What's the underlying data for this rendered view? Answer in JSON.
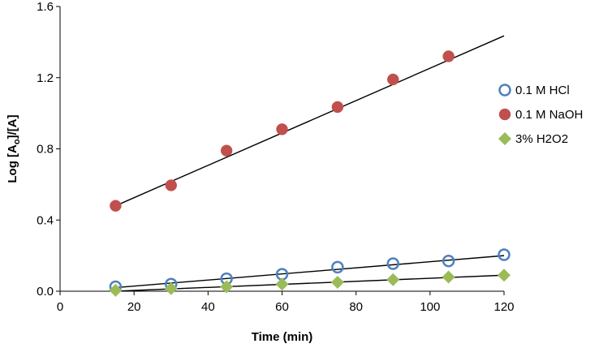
{
  "chart_data": {
    "type": "scatter",
    "xlabel": "Time (min)",
    "ylabel": {
      "prefix": "Log [A",
      "subscript": "o",
      "suffix": "]/[A]"
    },
    "xlim": [
      0,
      120
    ],
    "ylim": [
      0,
      1.6
    ],
    "xticks": [
      "0",
      "20",
      "40",
      "60",
      "80",
      "100",
      "120"
    ],
    "yticks": [
      "0.0",
      "0.4",
      "0.8",
      "1.2",
      "1.6"
    ],
    "grid": false,
    "legend_position": "right",
    "x": [
      15,
      30,
      45,
      60,
      75,
      90,
      105,
      120
    ],
    "series": [
      {
        "name": "0.1 M HCl",
        "marker": "circle-open",
        "color": "#4F81BD",
        "x": [
          15,
          30,
          45,
          60,
          75,
          90,
          105,
          120
        ],
        "values": [
          0.025,
          0.04,
          0.07,
          0.095,
          0.135,
          0.155,
          0.17,
          0.205
        ],
        "trendline": {
          "x": [
            15,
            120
          ],
          "y": [
            0.02,
            0.2
          ]
        }
      },
      {
        "name": "0.1 M NaOH",
        "marker": "circle-filled",
        "color": "#C0504D",
        "x": [
          15,
          30,
          45,
          60,
          75,
          90,
          105
        ],
        "values": [
          0.48,
          0.595,
          0.79,
          0.91,
          1.035,
          1.19,
          1.32
        ],
        "trendline": {
          "x": [
            15,
            120
          ],
          "y": [
            0.48,
            1.435
          ]
        }
      },
      {
        "name": "3% H2O2",
        "marker": "diamond",
        "color": "#9BBB59",
        "x": [
          15,
          30,
          45,
          60,
          75,
          90,
          105,
          120
        ],
        "values": [
          0.005,
          0.015,
          0.025,
          0.04,
          0.05,
          0.065,
          0.08,
          0.09
        ],
        "trendline": {
          "x": [
            15,
            120
          ],
          "y": [
            0.0,
            0.09
          ]
        }
      }
    ]
  }
}
